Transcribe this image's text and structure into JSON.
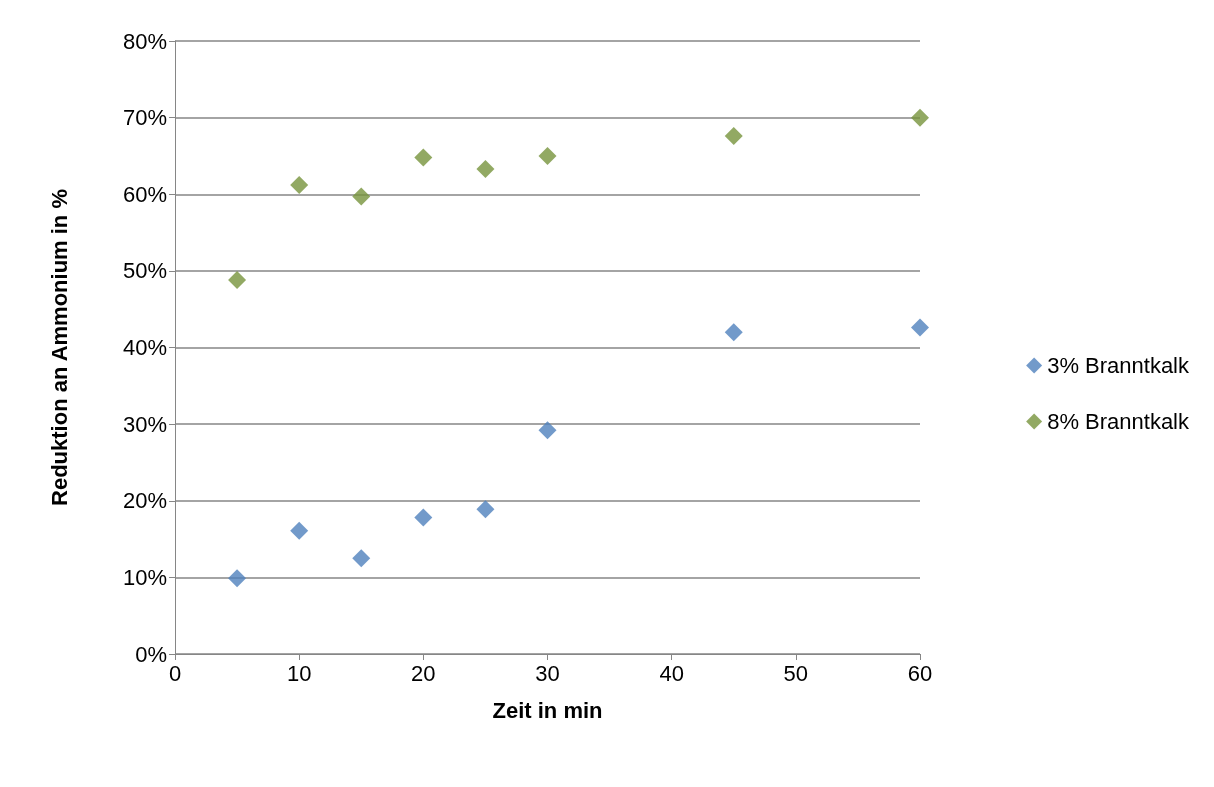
{
  "chart_data": {
    "type": "scatter",
    "xlabel": "Zeit in min",
    "ylabel": "Reduktion an Ammonium in %",
    "x": [
      5,
      10,
      15,
      20,
      25,
      30,
      45,
      60
    ],
    "series": [
      {
        "name": "3% Branntkalk",
        "color": "#4f81bd",
        "values": [
          9.9,
          16.1,
          12.5,
          17.8,
          18.9,
          29.2,
          42.0,
          42.6
        ]
      },
      {
        "name": "8% Branntkalk",
        "color": "#77933c",
        "values": [
          48.8,
          61.2,
          59.7,
          64.8,
          63.3,
          65.0,
          67.6,
          70.0
        ]
      }
    ],
    "xlim": [
      0,
      60
    ],
    "xticks": [
      0,
      10,
      20,
      30,
      40,
      50,
      60
    ],
    "ylim": [
      0,
      80
    ],
    "yticks": [
      {
        "value": 0,
        "label": "0%"
      },
      {
        "value": 10,
        "label": "10%"
      },
      {
        "value": 20,
        "label": "20%"
      },
      {
        "value": 30,
        "label": "30%"
      },
      {
        "value": 40,
        "label": "40%"
      },
      {
        "value": 50,
        "label": "50%"
      },
      {
        "value": 60,
        "label": "60%"
      },
      {
        "value": 70,
        "label": "70%"
      },
      {
        "value": 80,
        "label": "80%"
      }
    ],
    "grid": "y",
    "legend": "right",
    "marker": "diamond"
  }
}
